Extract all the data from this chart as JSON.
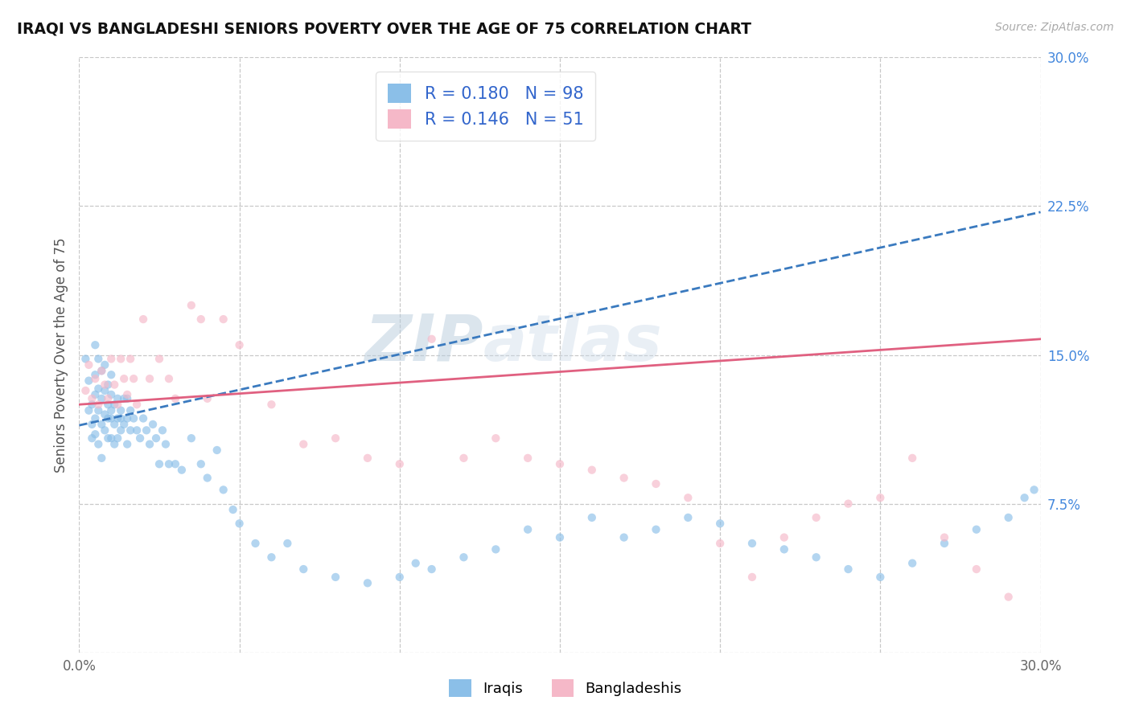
{
  "title": "IRAQI VS BANGLADESHI SENIORS POVERTY OVER THE AGE OF 75 CORRELATION CHART",
  "source": "Source: ZipAtlas.com",
  "ylabel": "Seniors Poverty Over the Age of 75",
  "xlim": [
    0.0,
    0.3
  ],
  "ylim": [
    0.0,
    0.3
  ],
  "xticks": [
    0.0,
    0.05,
    0.1,
    0.15,
    0.2,
    0.25,
    0.3
  ],
  "yticks": [
    0.0,
    0.075,
    0.15,
    0.225,
    0.3
  ],
  "xtick_labels": [
    "0.0%",
    "",
    "",
    "",
    "",
    "",
    "30.0%"
  ],
  "ytick_labels": [
    "",
    "7.5%",
    "15.0%",
    "22.5%",
    "30.0%"
  ],
  "background_color": "#ffffff",
  "grid_color": "#c8c8c8",
  "watermark_line1": "ZIP",
  "watermark_line2": "atlas",
  "watermark_color": "#d0dff0",
  "iraqi_color": "#8bbfe8",
  "bangladeshi_color": "#f5b8c8",
  "trendline_iraqi_color": "#3a7abf",
  "trendline_bangladeshi_color": "#e06080",
  "dot_size": 55,
  "dot_alpha": 0.65,
  "iraqi_x": [
    0.002,
    0.003,
    0.003,
    0.004,
    0.004,
    0.004,
    0.005,
    0.005,
    0.005,
    0.005,
    0.005,
    0.006,
    0.006,
    0.006,
    0.006,
    0.007,
    0.007,
    0.007,
    0.007,
    0.008,
    0.008,
    0.008,
    0.008,
    0.009,
    0.009,
    0.009,
    0.009,
    0.01,
    0.01,
    0.01,
    0.01,
    0.01,
    0.011,
    0.011,
    0.011,
    0.012,
    0.012,
    0.012,
    0.013,
    0.013,
    0.013,
    0.014,
    0.014,
    0.015,
    0.015,
    0.015,
    0.016,
    0.016,
    0.017,
    0.018,
    0.019,
    0.02,
    0.021,
    0.022,
    0.023,
    0.024,
    0.025,
    0.026,
    0.027,
    0.028,
    0.03,
    0.032,
    0.035,
    0.038,
    0.04,
    0.043,
    0.045,
    0.048,
    0.05,
    0.055,
    0.06,
    0.065,
    0.07,
    0.08,
    0.09,
    0.1,
    0.105,
    0.11,
    0.12,
    0.13,
    0.14,
    0.15,
    0.16,
    0.17,
    0.18,
    0.19,
    0.2,
    0.21,
    0.22,
    0.23,
    0.24,
    0.25,
    0.26,
    0.27,
    0.28,
    0.29,
    0.295,
    0.298
  ],
  "iraqi_y": [
    0.148,
    0.122,
    0.137,
    0.108,
    0.125,
    0.115,
    0.155,
    0.13,
    0.118,
    0.14,
    0.11,
    0.148,
    0.122,
    0.105,
    0.133,
    0.115,
    0.128,
    0.098,
    0.142,
    0.12,
    0.112,
    0.132,
    0.145,
    0.118,
    0.108,
    0.135,
    0.125,
    0.118,
    0.13,
    0.108,
    0.122,
    0.14,
    0.115,
    0.125,
    0.105,
    0.118,
    0.128,
    0.108,
    0.122,
    0.112,
    0.118,
    0.128,
    0.115,
    0.105,
    0.118,
    0.128,
    0.112,
    0.122,
    0.118,
    0.112,
    0.108,
    0.118,
    0.112,
    0.105,
    0.115,
    0.108,
    0.095,
    0.112,
    0.105,
    0.095,
    0.095,
    0.092,
    0.108,
    0.095,
    0.088,
    0.102,
    0.082,
    0.072,
    0.065,
    0.055,
    0.048,
    0.055,
    0.042,
    0.038,
    0.035,
    0.038,
    0.045,
    0.042,
    0.048,
    0.052,
    0.062,
    0.058,
    0.068,
    0.058,
    0.062,
    0.068,
    0.065,
    0.055,
    0.052,
    0.048,
    0.042,
    0.038,
    0.045,
    0.055,
    0.062,
    0.068,
    0.078,
    0.082
  ],
  "bangladeshi_x": [
    0.002,
    0.003,
    0.004,
    0.005,
    0.006,
    0.007,
    0.008,
    0.009,
    0.01,
    0.011,
    0.012,
    0.013,
    0.014,
    0.015,
    0.016,
    0.017,
    0.018,
    0.02,
    0.022,
    0.025,
    0.028,
    0.03,
    0.035,
    0.038,
    0.04,
    0.045,
    0.05,
    0.06,
    0.07,
    0.08,
    0.09,
    0.1,
    0.11,
    0.12,
    0.13,
    0.14,
    0.15,
    0.16,
    0.17,
    0.18,
    0.19,
    0.2,
    0.21,
    0.22,
    0.23,
    0.24,
    0.25,
    0.26,
    0.27,
    0.28,
    0.29
  ],
  "bangladeshi_y": [
    0.132,
    0.145,
    0.128,
    0.138,
    0.125,
    0.142,
    0.135,
    0.128,
    0.148,
    0.135,
    0.125,
    0.148,
    0.138,
    0.13,
    0.148,
    0.138,
    0.125,
    0.168,
    0.138,
    0.148,
    0.138,
    0.128,
    0.175,
    0.168,
    0.128,
    0.168,
    0.155,
    0.125,
    0.105,
    0.108,
    0.098,
    0.095,
    0.158,
    0.098,
    0.108,
    0.098,
    0.095,
    0.092,
    0.088,
    0.085,
    0.078,
    0.055,
    0.038,
    0.058,
    0.068,
    0.075,
    0.078,
    0.098,
    0.058,
    0.042,
    0.028
  ],
  "trendline_iraqi": [
    0.1145,
    0.1145,
    0.222
  ],
  "trendline_bangladeshi": [
    0.125,
    0.125,
    0.158
  ],
  "trendline_x_start": 0.0,
  "trendline_x_end": 0.3
}
